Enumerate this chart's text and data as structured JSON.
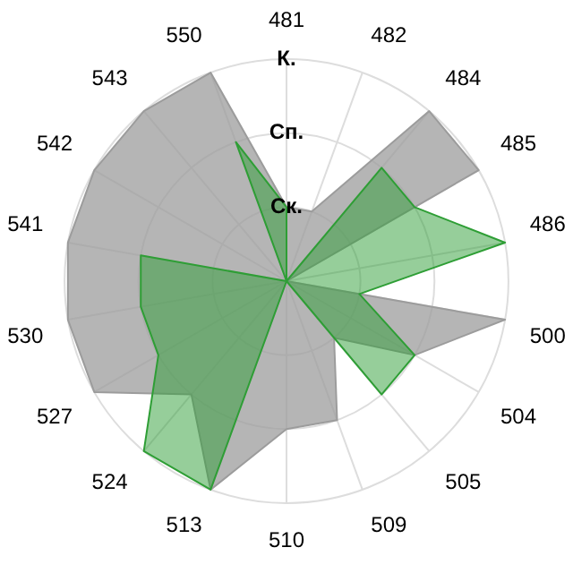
{
  "chart_data": {
    "type": "radar",
    "categories": [
      "481",
      "482",
      "484",
      "485",
      "486",
      "500",
      "504",
      "505",
      "509",
      "510",
      "513",
      "524",
      "527",
      "530",
      "541",
      "542",
      "543",
      "550"
    ],
    "series": [
      {
        "color": "#9c9c9c",
        "values": [
          1,
          1,
          3,
          3,
          0,
          3,
          2,
          1,
          2,
          2,
          3,
          2,
          3,
          3,
          3,
          3,
          3,
          3
        ]
      },
      {
        "color": "#2e9e35",
        "values": [
          1,
          0,
          2,
          2,
          3,
          1,
          2,
          2,
          0,
          0,
          3,
          3,
          2,
          2,
          2,
          0,
          0,
          2
        ]
      }
    ],
    "ylim": [
      0,
      3
    ],
    "yticks": [
      {
        "value": 1,
        "label": "Ск."
      },
      {
        "value": 2,
        "label": "Сп."
      },
      {
        "value": 3,
        "label": "К."
      }
    ],
    "grid": true,
    "legend": false,
    "marker": "none"
  }
}
